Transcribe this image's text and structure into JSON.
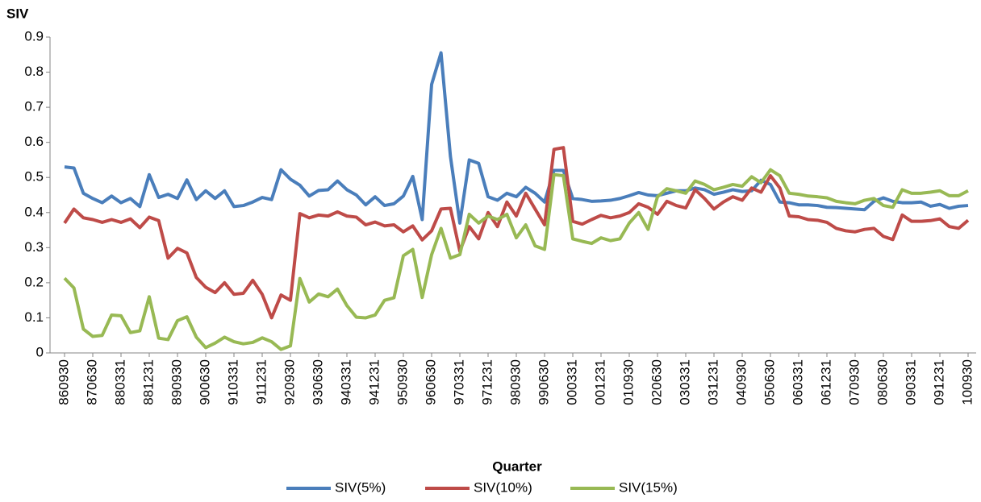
{
  "chart_data": {
    "type": "line",
    "y_label": "SIV",
    "x_label": "Quarter",
    "categories": [
      "860930",
      null,
      null,
      "870630",
      null,
      null,
      "880331",
      null,
      null,
      "881231",
      null,
      null,
      "890930",
      null,
      null,
      "900630",
      null,
      null,
      "910331",
      null,
      null,
      "911231",
      null,
      null,
      "920930",
      null,
      null,
      "930630",
      null,
      null,
      "940331",
      null,
      null,
      "941231",
      null,
      null,
      "950930",
      null,
      null,
      "960630",
      null,
      null,
      "970331",
      null,
      null,
      "971231",
      null,
      null,
      "980930",
      null,
      null,
      "990630",
      null,
      null,
      "000331",
      null,
      null,
      "001231",
      null,
      null,
      "010930",
      null,
      null,
      "020630",
      null,
      null,
      "030331",
      null,
      null,
      "031231",
      null,
      null,
      "040930",
      null,
      null,
      "050630",
      null,
      null,
      "060331",
      null,
      null,
      "061231",
      null,
      null,
      "070930",
      null,
      null,
      "080630",
      null,
      null,
      "090331",
      null,
      null,
      "091231",
      null,
      null,
      "100930"
    ],
    "series": [
      {
        "name": "SIV(5%)",
        "color": "#4a7ebb",
        "values": [
          0.53,
          0.527,
          0.455,
          0.44,
          0.428,
          0.447,
          0.428,
          0.44,
          0.417,
          0.508,
          0.443,
          0.452,
          0.44,
          0.493,
          0.437,
          0.462,
          0.44,
          0.462,
          0.417,
          0.42,
          0.43,
          0.443,
          0.437,
          0.522,
          0.495,
          0.478,
          0.447,
          0.463,
          0.465,
          0.49,
          0.465,
          0.45,
          0.422,
          0.445,
          0.42,
          0.425,
          0.447,
          0.503,
          0.38,
          0.765,
          0.855,
          0.56,
          0.37,
          0.55,
          0.54,
          0.445,
          0.435,
          0.455,
          0.445,
          0.472,
          0.455,
          0.43,
          0.52,
          0.52,
          0.44,
          0.437,
          0.432,
          0.433,
          0.435,
          0.44,
          0.448,
          0.457,
          0.45,
          0.448,
          0.455,
          0.462,
          0.462,
          0.47,
          0.465,
          0.452,
          0.458,
          0.465,
          0.46,
          0.462,
          0.492,
          0.48,
          0.43,
          0.428,
          0.422,
          0.422,
          0.42,
          0.415,
          0.414,
          0.412,
          0.41,
          0.408,
          0.432,
          0.442,
          0.432,
          0.428,
          0.428,
          0.43,
          0.418,
          0.423,
          0.412,
          0.418,
          0.42
        ]
      },
      {
        "name": "SIV(10%)",
        "color": "#be4b48",
        "values": [
          0.37,
          0.41,
          0.385,
          0.38,
          0.372,
          0.38,
          0.372,
          0.382,
          0.357,
          0.387,
          0.377,
          0.27,
          0.298,
          0.285,
          0.215,
          0.187,
          0.172,
          0.2,
          0.167,
          0.17,
          0.207,
          0.167,
          0.1,
          0.165,
          0.15,
          0.397,
          0.385,
          0.393,
          0.39,
          0.402,
          0.39,
          0.387,
          0.365,
          0.373,
          0.362,
          0.365,
          0.345,
          0.362,
          0.322,
          0.348,
          0.41,
          0.412,
          0.29,
          0.36,
          0.325,
          0.4,
          0.36,
          0.43,
          0.39,
          0.455,
          0.41,
          0.365,
          0.58,
          0.585,
          0.375,
          0.367,
          0.38,
          0.392,
          0.385,
          0.39,
          0.4,
          0.425,
          0.415,
          0.395,
          0.432,
          0.42,
          0.413,
          0.465,
          0.44,
          0.41,
          0.43,
          0.445,
          0.435,
          0.47,
          0.458,
          0.505,
          0.47,
          0.39,
          0.388,
          0.38,
          0.378,
          0.372,
          0.355,
          0.348,
          0.345,
          0.352,
          0.355,
          0.332,
          0.323,
          0.393,
          0.375,
          0.375,
          0.377,
          0.382,
          0.36,
          0.355,
          0.378
        ]
      },
      {
        "name": "SIV(15%)",
        "color": "#98b954",
        "values": [
          0.213,
          0.185,
          0.068,
          0.047,
          0.05,
          0.108,
          0.106,
          0.058,
          0.063,
          0.16,
          0.042,
          0.038,
          0.092,
          0.103,
          0.045,
          0.015,
          0.028,
          0.045,
          0.032,
          0.026,
          0.03,
          0.043,
          0.032,
          0.01,
          0.02,
          0.212,
          0.145,
          0.168,
          0.16,
          0.182,
          0.135,
          0.102,
          0.1,
          0.108,
          0.15,
          0.157,
          0.277,
          0.295,
          0.158,
          0.28,
          0.355,
          0.27,
          0.28,
          0.395,
          0.37,
          0.39,
          0.38,
          0.395,
          0.328,
          0.365,
          0.305,
          0.295,
          0.508,
          0.505,
          0.325,
          0.318,
          0.312,
          0.328,
          0.32,
          0.325,
          0.37,
          0.4,
          0.352,
          0.445,
          0.468,
          0.462,
          0.455,
          0.49,
          0.48,
          0.465,
          0.472,
          0.48,
          0.475,
          0.502,
          0.485,
          0.522,
          0.505,
          0.455,
          0.452,
          0.447,
          0.445,
          0.442,
          0.432,
          0.428,
          0.425,
          0.435,
          0.44,
          0.42,
          0.415,
          0.465,
          0.455,
          0.455,
          0.458,
          0.462,
          0.448,
          0.448,
          0.462
        ]
      }
    ],
    "ylim": [
      0,
      0.9
    ],
    "yticks": [
      0,
      0.1,
      0.2,
      0.3,
      0.4,
      0.5,
      0.6,
      0.7,
      0.8,
      0.9
    ],
    "grid": false,
    "legend": "bottom"
  }
}
